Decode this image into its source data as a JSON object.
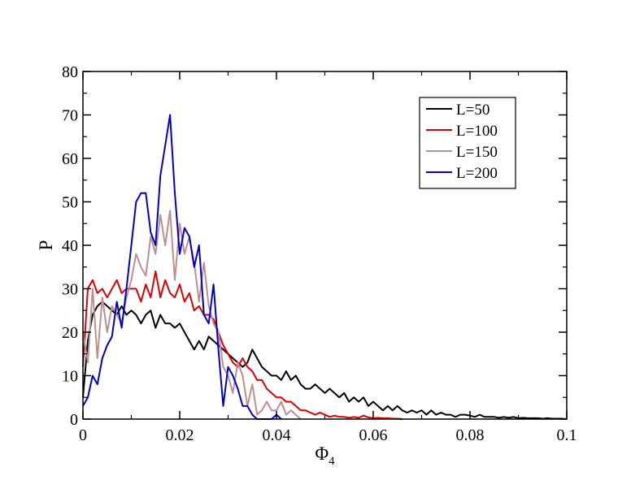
{
  "chart_data": {
    "type": "line",
    "xlabel": "Φ",
    "xlabel_sub": "4",
    "ylabel": "P",
    "xlim": [
      0,
      0.1
    ],
    "ylim": [
      0,
      80
    ],
    "grid": false,
    "legend_position": "top-right",
    "x_ticks": [
      0,
      0.02,
      0.04,
      0.06,
      0.08,
      0.1
    ],
    "x_tick_labels": [
      "0",
      "0.02",
      "0.04",
      "0.06",
      "0.08",
      "0.1"
    ],
    "y_ticks": [
      0,
      10,
      20,
      30,
      40,
      50,
      60,
      70,
      80
    ],
    "y_tick_labels": [
      "0",
      "10",
      "20",
      "30",
      "40",
      "50",
      "60",
      "70",
      "80"
    ],
    "series": [
      {
        "name": "L=50",
        "color": "#000000",
        "x": [
          0,
          0.001,
          0.002,
          0.003,
          0.004,
          0.005,
          0.006,
          0.007,
          0.008,
          0.009,
          0.01,
          0.011,
          0.012,
          0.013,
          0.014,
          0.015,
          0.016,
          0.017,
          0.018,
          0.019,
          0.02,
          0.021,
          0.022,
          0.023,
          0.024,
          0.025,
          0.026,
          0.027,
          0.028,
          0.029,
          0.03,
          0.031,
          0.032,
          0.033,
          0.034,
          0.035,
          0.036,
          0.037,
          0.038,
          0.039,
          0.04,
          0.041,
          0.042,
          0.043,
          0.044,
          0.045,
          0.046,
          0.047,
          0.048,
          0.049,
          0.05,
          0.051,
          0.052,
          0.053,
          0.054,
          0.055,
          0.056,
          0.057,
          0.058,
          0.059,
          0.06,
          0.061,
          0.062,
          0.063,
          0.064,
          0.065,
          0.066,
          0.067,
          0.068,
          0.069,
          0.07,
          0.071,
          0.072,
          0.073,
          0.074,
          0.075,
          0.076,
          0.077,
          0.078,
          0.079,
          0.08,
          0.081,
          0.082,
          0.083,
          0.084,
          0.085,
          0.086,
          0.087,
          0.088,
          0.089,
          0.09,
          0.091,
          0.092,
          0.093,
          0.094,
          0.095,
          0.096,
          0.097,
          0.098,
          0.099,
          0.1
        ],
        "y": [
          5,
          18,
          24,
          26,
          27,
          26,
          25,
          24,
          26,
          24,
          25,
          24,
          22,
          24,
          25,
          21,
          24,
          22,
          22,
          21,
          22,
          20,
          18,
          16,
          18,
          16,
          19,
          18,
          17,
          16,
          15,
          14,
          13,
          12,
          13,
          16,
          14,
          12,
          11,
          10,
          10,
          9,
          11,
          9,
          10,
          8,
          7,
          7,
          8,
          7,
          6,
          7,
          6,
          5,
          6,
          4,
          5,
          4,
          5,
          3,
          4,
          3,
          2,
          3,
          2,
          3,
          2,
          1.5,
          2,
          1.5,
          2,
          1,
          2,
          1,
          1.5,
          1,
          1,
          0.5,
          1,
          1,
          0.8,
          0.5,
          1,
          0.5,
          0.5,
          0.5,
          0.3,
          0.5,
          0.3,
          0.5,
          0.2,
          0.3,
          0.2,
          0.2,
          0.2,
          0.1,
          0.2,
          0.1,
          0.1,
          0.1,
          0
        ]
      },
      {
        "name": "L=100",
        "color": "#dd0000",
        "x": [
          0,
          0.001,
          0.002,
          0.003,
          0.004,
          0.005,
          0.006,
          0.007,
          0.008,
          0.009,
          0.01,
          0.011,
          0.012,
          0.013,
          0.014,
          0.015,
          0.016,
          0.017,
          0.018,
          0.019,
          0.02,
          0.021,
          0.022,
          0.023,
          0.024,
          0.025,
          0.026,
          0.027,
          0.028,
          0.029,
          0.03,
          0.031,
          0.032,
          0.033,
          0.034,
          0.035,
          0.036,
          0.037,
          0.038,
          0.039,
          0.04,
          0.041,
          0.042,
          0.043,
          0.044,
          0.045,
          0.046,
          0.047,
          0.048,
          0.049,
          0.05,
          0.051,
          0.052,
          0.053,
          0.054,
          0.055,
          0.056,
          0.057,
          0.058,
          0.059,
          0.06,
          0.061,
          0.062,
          0.063,
          0.064,
          0.065,
          0.066
        ],
        "y": [
          12,
          30,
          32,
          29,
          30,
          28,
          30,
          32,
          29,
          30,
          30,
          30,
          27,
          31,
          28,
          34,
          28,
          32,
          29,
          28,
          31,
          27,
          29,
          25,
          26,
          24,
          24,
          23,
          20,
          17,
          15,
          13,
          12,
          14,
          12,
          11,
          9,
          9,
          7,
          6,
          5,
          5,
          4,
          4,
          3,
          2,
          2,
          1.5,
          1,
          1.5,
          1,
          0.5,
          0.8,
          0.5,
          0.5,
          0.3,
          0.5,
          0.3,
          0.8,
          0.4,
          0.2,
          0.3,
          0.2,
          0.2,
          0.1,
          0.1,
          0
        ]
      },
      {
        "name": "L=150",
        "color": "#bc8f8f",
        "x": [
          0,
          0.001,
          0.002,
          0.003,
          0.004,
          0.005,
          0.006,
          0.007,
          0.008,
          0.009,
          0.01,
          0.011,
          0.012,
          0.013,
          0.014,
          0.015,
          0.016,
          0.017,
          0.018,
          0.019,
          0.02,
          0.021,
          0.022,
          0.023,
          0.024,
          0.025,
          0.026,
          0.027,
          0.028,
          0.029,
          0.03,
          0.031,
          0.032,
          0.033,
          0.034,
          0.035,
          0.036,
          0.037,
          0.038,
          0.039,
          0.04,
          0.041,
          0.042,
          0.043,
          0.044,
          0.045
        ],
        "y": [
          20,
          13,
          30,
          14,
          28,
          20,
          26,
          24,
          22,
          28,
          32,
          38,
          35,
          33,
          42,
          38,
          47,
          40,
          48,
          32,
          45,
          38,
          42,
          36,
          27,
          36,
          26,
          22,
          20,
          12,
          10,
          6,
          13,
          10,
          3,
          8,
          1,
          2,
          4,
          2,
          2,
          4,
          1,
          2,
          1,
          0
        ]
      },
      {
        "name": "L=200",
        "color": "#0000cc",
        "x": [
          0,
          0.001,
          0.002,
          0.003,
          0.004,
          0.005,
          0.006,
          0.007,
          0.008,
          0.009,
          0.01,
          0.011,
          0.012,
          0.013,
          0.014,
          0.015,
          0.016,
          0.017,
          0.018,
          0.019,
          0.02,
          0.021,
          0.022,
          0.023,
          0.024,
          0.025,
          0.026,
          0.027,
          0.028,
          0.029,
          0.03,
          0.031,
          0.032,
          0.033,
          0.034,
          0.035,
          0.036,
          0.037,
          0.038,
          0.039,
          0.04,
          0.041
        ],
        "y": [
          3,
          5,
          10,
          8,
          14,
          17,
          19,
          27,
          21,
          30,
          40,
          50,
          52,
          52,
          43,
          40,
          56,
          63,
          70,
          52,
          38,
          44,
          42,
          35,
          40,
          24,
          22,
          31,
          16,
          3,
          12,
          10,
          7,
          3,
          3,
          1,
          0,
          0,
          0,
          0,
          1,
          0
        ]
      }
    ]
  }
}
